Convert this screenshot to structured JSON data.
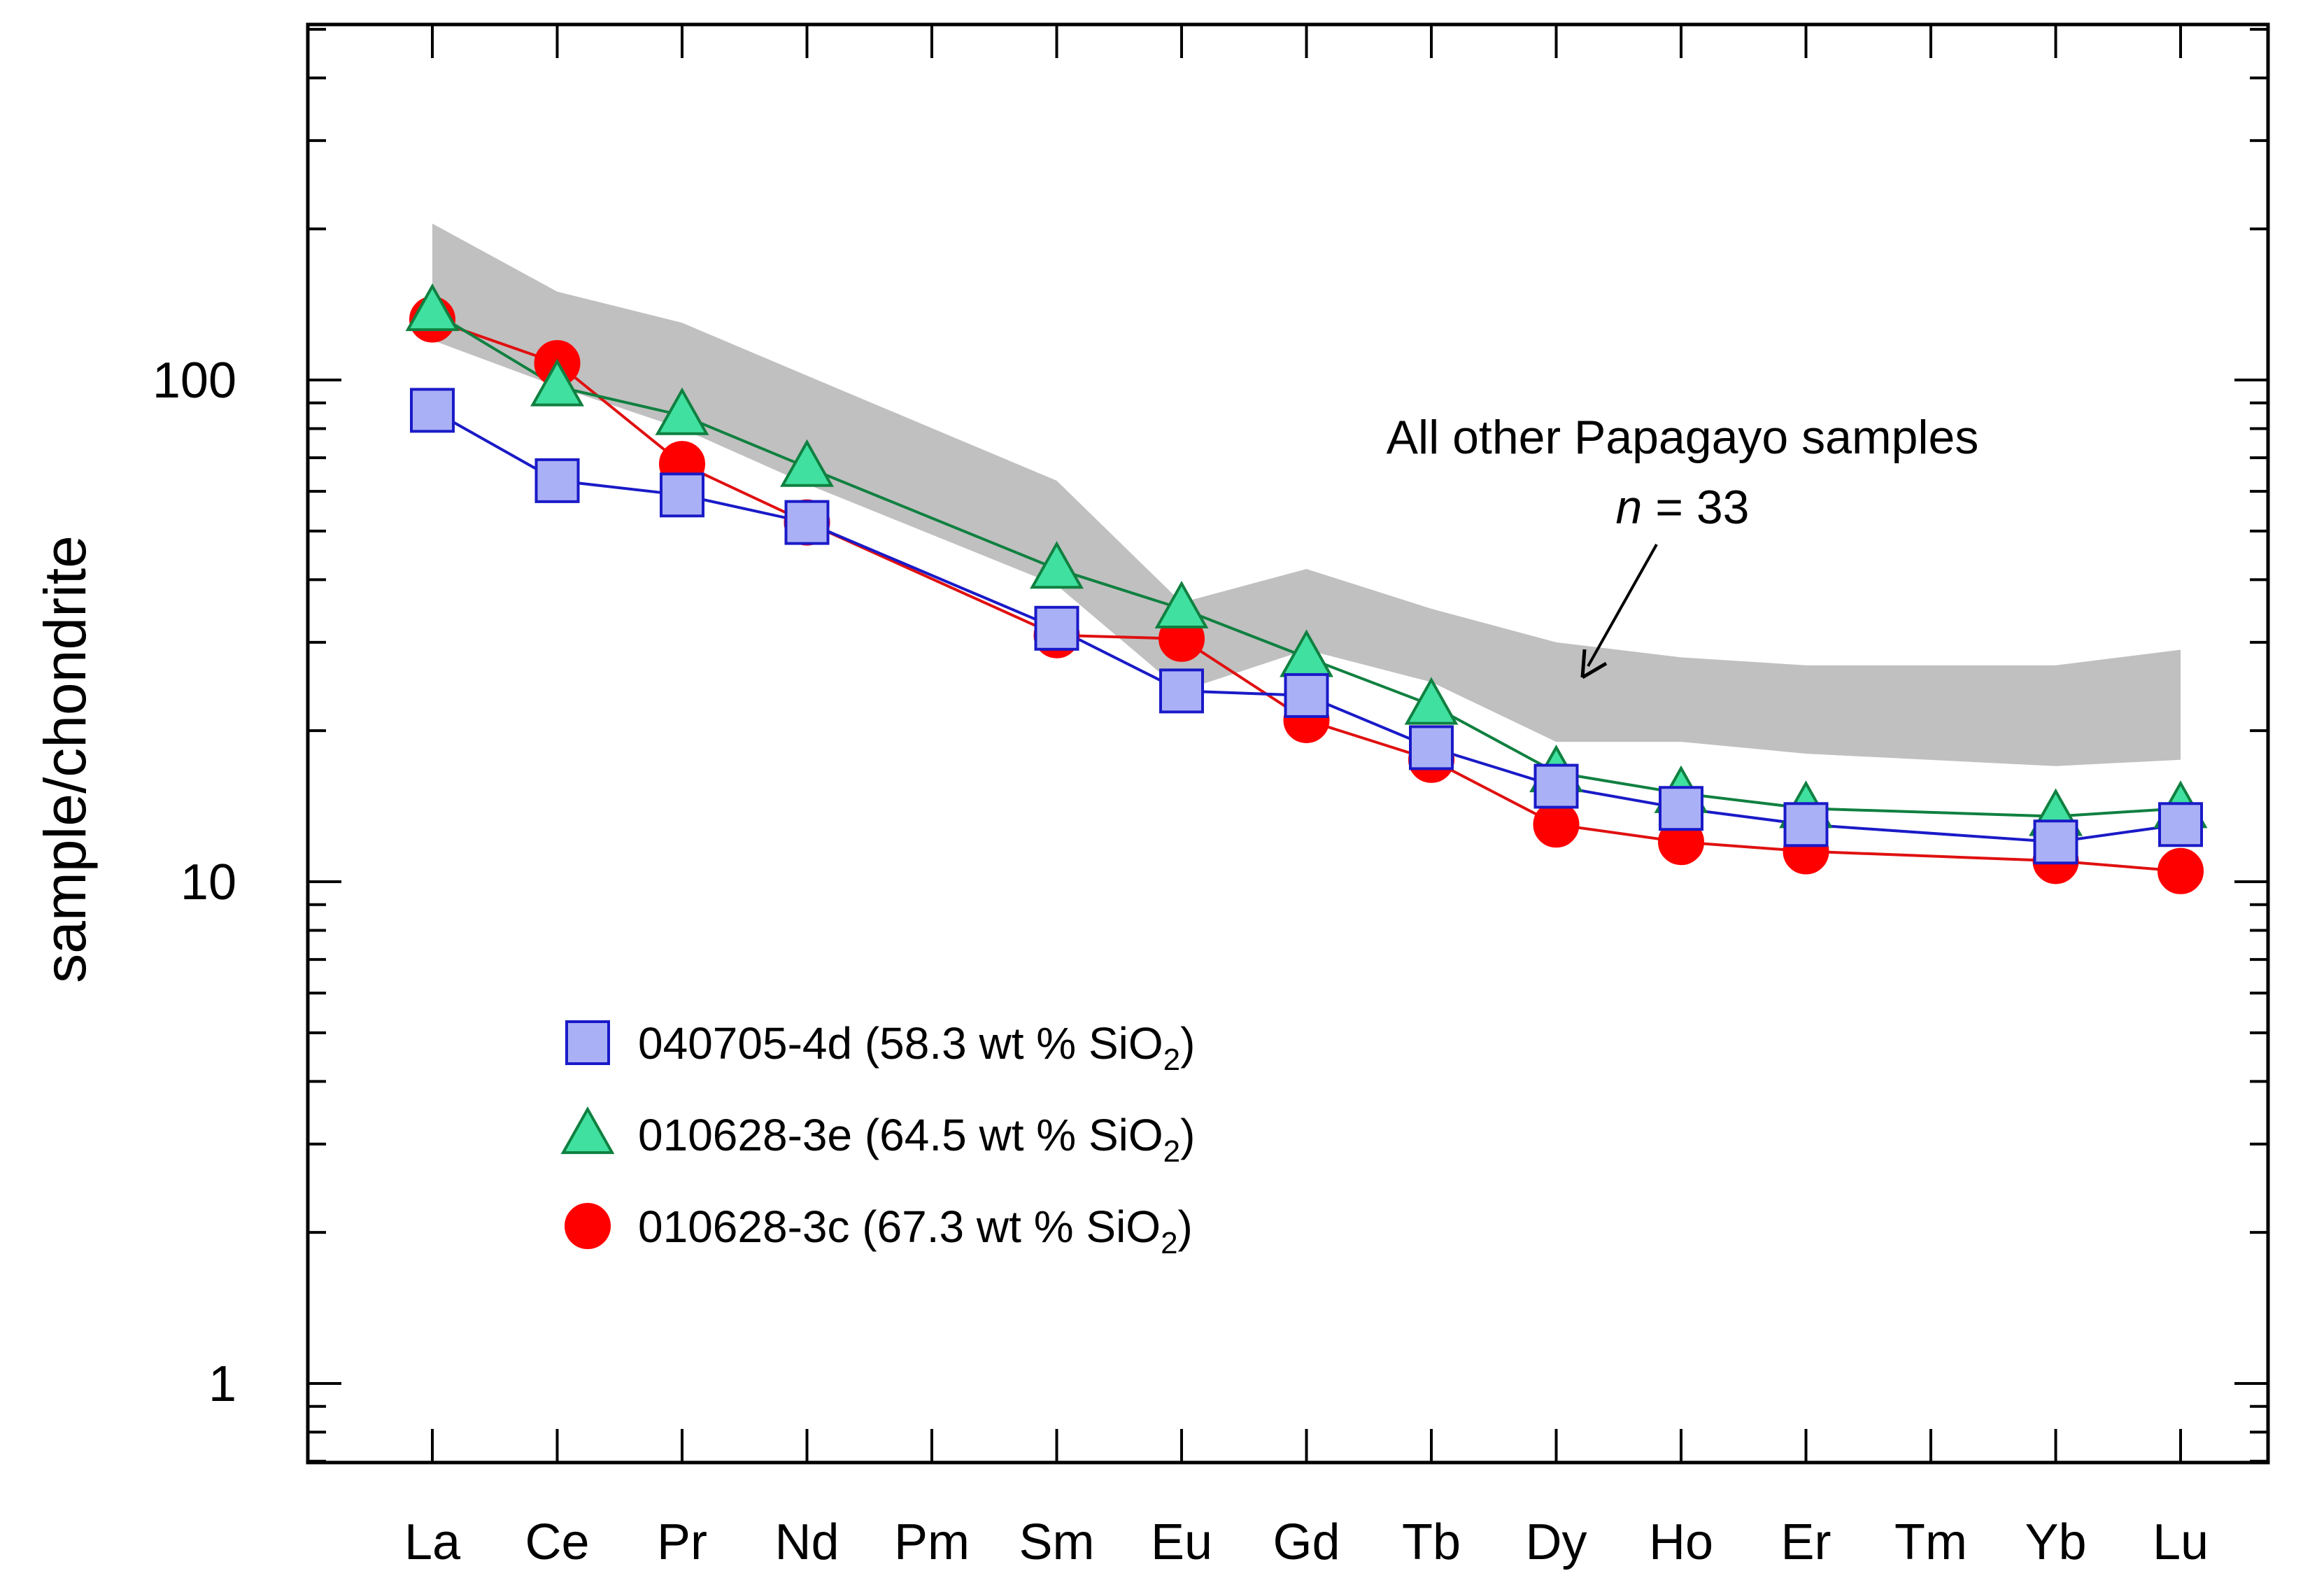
{
  "chart_data": {
    "type": "line",
    "title": "",
    "xlabel": "",
    "ylabel": "sample/chondrite",
    "yscale": "log",
    "ylim": [
      0.65,
      600
    ],
    "y_ticks": [
      1,
      10,
      100
    ],
    "y_tick_labels": [
      "1",
      "10",
      "100"
    ],
    "categories": [
      "La",
      "Ce",
      "Pr",
      "Nd",
      "Pm",
      "Sm",
      "Eu",
      "Gd",
      "Tb",
      "Dy",
      "Ho",
      "Er",
      "Tm",
      "Yb",
      "Lu"
    ],
    "band": {
      "name": "All other Papagayo samples",
      "annotation_line1": "All other Papagayo samples",
      "annotation_n_symbol": "n",
      "annotation_n_rest": " = 33",
      "color": "#c0c0c0",
      "upper": [
        {
          "x": "La",
          "y": 205
        },
        {
          "x": "Ce",
          "y": 150
        },
        {
          "x": "Pr",
          "y": 130
        },
        {
          "x": "Nd",
          "y": 102
        },
        {
          "x": "Sm",
          "y": 63
        },
        {
          "x": "Eu",
          "y": 36
        },
        {
          "x": "Gd",
          "y": 42
        },
        {
          "x": "Tb",
          "y": 35
        },
        {
          "x": "Dy",
          "y": 30
        },
        {
          "x": "Ho",
          "y": 28
        },
        {
          "x": "Er",
          "y": 27
        },
        {
          "x": "Yb",
          "y": 27
        },
        {
          "x": "Lu",
          "y": 29
        }
      ],
      "lower": [
        {
          "x": "La",
          "y": 120
        },
        {
          "x": "Ce",
          "y": 97
        },
        {
          "x": "Pr",
          "y": 80
        },
        {
          "x": "Nd",
          "y": 62
        },
        {
          "x": "Sm",
          "y": 39
        },
        {
          "x": "Eu",
          "y": 24
        },
        {
          "x": "Gd",
          "y": 29
        },
        {
          "x": "Tb",
          "y": 25
        },
        {
          "x": "Dy",
          "y": 19
        },
        {
          "x": "Ho",
          "y": 19
        },
        {
          "x": "Er",
          "y": 18
        },
        {
          "x": "Yb",
          "y": 17
        },
        {
          "x": "Lu",
          "y": 17.5
        }
      ]
    },
    "series": [
      {
        "name": "040705-4d",
        "legend_prefix": "040705-4d (58.3 wt % SiO",
        "legend_sub": "2",
        "legend_suffix": ")",
        "marker": "square",
        "fill": "#aab0f5",
        "stroke": "#1a1ac8",
        "line": "#1a1ac8",
        "points": [
          {
            "x": "La",
            "y": 87
          },
          {
            "x": "Ce",
            "y": 63
          },
          {
            "x": "Pr",
            "y": 59
          },
          {
            "x": "Nd",
            "y": 52
          },
          {
            "x": "Sm",
            "y": 32
          },
          {
            "x": "Eu",
            "y": 24
          },
          {
            "x": "Gd",
            "y": 23.5
          },
          {
            "x": "Tb",
            "y": 18.5
          },
          {
            "x": "Dy",
            "y": 15.5
          },
          {
            "x": "Ho",
            "y": 14
          },
          {
            "x": "Er",
            "y": 13
          },
          {
            "x": "Yb",
            "y": 12
          },
          {
            "x": "Lu",
            "y": 13
          }
        ]
      },
      {
        "name": "010628-3e",
        "legend_prefix": "010628-3e (64.5 wt % SiO",
        "legend_sub": "2",
        "legend_suffix": ")",
        "marker": "triangle",
        "fill": "#40e0a0",
        "stroke": "#108040",
        "line": "#108040",
        "points": [
          {
            "x": "La",
            "y": 137
          },
          {
            "x": "Ce",
            "y": 97
          },
          {
            "x": "Pr",
            "y": 85
          },
          {
            "x": "Nd",
            "y": 67
          },
          {
            "x": "Sm",
            "y": 42
          },
          {
            "x": "Eu",
            "y": 35
          },
          {
            "x": "Gd",
            "y": 28
          },
          {
            "x": "Tb",
            "y": 22.5
          },
          {
            "x": "Dy",
            "y": 16.5
          },
          {
            "x": "Ho",
            "y": 15
          },
          {
            "x": "Er",
            "y": 14
          },
          {
            "x": "Yb",
            "y": 13.5
          },
          {
            "x": "Lu",
            "y": 14
          }
        ]
      },
      {
        "name": "010628-3c",
        "legend_prefix": "010628-3c (67.3 wt % SiO",
        "legend_sub": "2",
        "legend_suffix": ")",
        "marker": "circle",
        "fill": "#ff0000",
        "stroke": "#ff0000",
        "line": "#e01010",
        "points": [
          {
            "x": "La",
            "y": 132
          },
          {
            "x": "Ce",
            "y": 108
          },
          {
            "x": "Pr",
            "y": 68
          },
          {
            "x": "Nd",
            "y": 52
          },
          {
            "x": "Sm",
            "y": 31
          },
          {
            "x": "Eu",
            "y": 30.5
          },
          {
            "x": "Gd",
            "y": 21
          },
          {
            "x": "Tb",
            "y": 17.5
          },
          {
            "x": "Dy",
            "y": 13
          },
          {
            "x": "Ho",
            "y": 12
          },
          {
            "x": "Er",
            "y": 11.5
          },
          {
            "x": "Yb",
            "y": 11
          },
          {
            "x": "Lu",
            "y": 10.5
          }
        ]
      }
    ],
    "legend_position": "lower-left"
  }
}
